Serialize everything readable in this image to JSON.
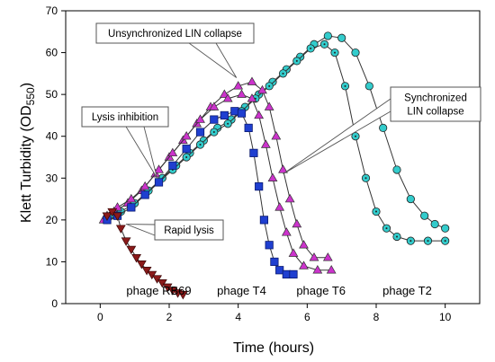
{
  "chart_data": {
    "type": "scatter",
    "xlabel": "Time (hours)",
    "ylabel": {
      "main": "Klett Turbidity (OD",
      "sub": "550",
      "close": ")"
    },
    "xlim": [
      -1,
      11
    ],
    "ylim": [
      0,
      70
    ],
    "xticks": [
      0,
      2,
      4,
      6,
      8,
      10
    ],
    "yticks": [
      0,
      10,
      20,
      30,
      40,
      50,
      60,
      70
    ],
    "grid": false,
    "colors": {
      "T2": "#33cccc",
      "T4": "#1f3fd0",
      "T6": "#cc33cc",
      "RB69": "#8b1a1a"
    },
    "series": [
      {
        "key": "T2a",
        "color_key": "T2",
        "marker": "circle",
        "points": [
          [
            0.3,
            21
          ],
          [
            0.6,
            22
          ],
          [
            1.0,
            24
          ],
          [
            1.4,
            27
          ],
          [
            1.8,
            30
          ],
          [
            2.2,
            33
          ],
          [
            2.6,
            36
          ],
          [
            3.0,
            39
          ],
          [
            3.4,
            42
          ],
          [
            3.8,
            44
          ],
          [
            4.2,
            47
          ],
          [
            4.6,
            50
          ],
          [
            5.0,
            53
          ],
          [
            5.4,
            56
          ],
          [
            5.8,
            59
          ],
          [
            6.2,
            62
          ],
          [
            6.6,
            64
          ],
          [
            7.0,
            63.5
          ],
          [
            7.4,
            60
          ],
          [
            7.8,
            52
          ],
          [
            8.2,
            42
          ],
          [
            8.6,
            32
          ],
          [
            9.0,
            25
          ],
          [
            9.4,
            21
          ],
          [
            9.7,
            19
          ],
          [
            10.0,
            18
          ]
        ]
      },
      {
        "key": "T2b",
        "color_key": "T2",
        "marker": "circle-dot",
        "points": [
          [
            0.2,
            20
          ],
          [
            0.5,
            21
          ],
          [
            0.9,
            23
          ],
          [
            1.3,
            26
          ],
          [
            1.7,
            29
          ],
          [
            2.1,
            32
          ],
          [
            2.5,
            35
          ],
          [
            2.9,
            38
          ],
          [
            3.3,
            41
          ],
          [
            3.7,
            43
          ],
          [
            4.1,
            46
          ],
          [
            4.5,
            49
          ],
          [
            4.9,
            52
          ],
          [
            5.3,
            55
          ],
          [
            5.7,
            58
          ],
          [
            6.1,
            61
          ],
          [
            6.5,
            62
          ],
          [
            6.8,
            60
          ],
          [
            7.1,
            52
          ],
          [
            7.4,
            40
          ],
          [
            7.7,
            30
          ],
          [
            8.0,
            22
          ],
          [
            8.3,
            18
          ],
          [
            8.6,
            16
          ],
          [
            9.0,
            15
          ],
          [
            9.5,
            15
          ],
          [
            10.0,
            15
          ]
        ]
      },
      {
        "key": "T6a",
        "color_key": "T6",
        "marker": "triangle-up",
        "points": [
          [
            0.1,
            20
          ],
          [
            0.4,
            22
          ],
          [
            0.8,
            24
          ],
          [
            1.2,
            27
          ],
          [
            1.6,
            31
          ],
          [
            2.0,
            35
          ],
          [
            2.4,
            39
          ],
          [
            2.8,
            43
          ],
          [
            3.2,
            47
          ],
          [
            3.6,
            50
          ],
          [
            4.0,
            52
          ],
          [
            4.4,
            53
          ],
          [
            4.7,
            51
          ],
          [
            4.9,
            47
          ],
          [
            5.1,
            40
          ],
          [
            5.3,
            32
          ],
          [
            5.5,
            25
          ],
          [
            5.7,
            19
          ],
          [
            5.9,
            14
          ],
          [
            6.2,
            11
          ],
          [
            6.6,
            11
          ]
        ]
      },
      {
        "key": "T6b",
        "color_key": "T6",
        "marker": "triangle-up",
        "points": [
          [
            0.2,
            21
          ],
          [
            0.5,
            23
          ],
          [
            0.9,
            25
          ],
          [
            1.3,
            28
          ],
          [
            1.7,
            32
          ],
          [
            2.1,
            36
          ],
          [
            2.5,
            40
          ],
          [
            2.9,
            44
          ],
          [
            3.3,
            47
          ],
          [
            3.7,
            49
          ],
          [
            4.1,
            50
          ],
          [
            4.4,
            49
          ],
          [
            4.6,
            45
          ],
          [
            4.8,
            38
          ],
          [
            5.0,
            30
          ],
          [
            5.2,
            23
          ],
          [
            5.4,
            17
          ],
          [
            5.6,
            12
          ],
          [
            5.9,
            9
          ],
          [
            6.3,
            8
          ],
          [
            6.7,
            8
          ]
        ]
      },
      {
        "key": "T4",
        "color_key": "T4",
        "marker": "square",
        "points": [
          [
            0.2,
            20
          ],
          [
            0.5,
            21
          ],
          [
            0.9,
            23
          ],
          [
            1.3,
            26
          ],
          [
            1.7,
            29
          ],
          [
            2.1,
            33
          ],
          [
            2.5,
            37
          ],
          [
            2.9,
            41
          ],
          [
            3.3,
            44
          ],
          [
            3.6,
            45
          ],
          [
            3.9,
            46
          ],
          [
            4.1,
            45.5
          ],
          [
            4.3,
            42
          ],
          [
            4.45,
            36
          ],
          [
            4.6,
            28
          ],
          [
            4.75,
            20
          ],
          [
            4.9,
            14
          ],
          [
            5.05,
            10
          ],
          [
            5.2,
            8
          ],
          [
            5.4,
            7
          ],
          [
            5.6,
            7
          ]
        ]
      },
      {
        "key": "RB69",
        "color_key": "RB69",
        "marker": "triangle-down",
        "points": [
          [
            0.2,
            21
          ],
          [
            0.35,
            22
          ],
          [
            0.5,
            21
          ],
          [
            0.6,
            18
          ],
          [
            0.75,
            15
          ],
          [
            0.9,
            13
          ],
          [
            1.05,
            11
          ],
          [
            1.2,
            9.5
          ],
          [
            1.35,
            8
          ],
          [
            1.5,
            7
          ],
          [
            1.65,
            6
          ],
          [
            1.8,
            5
          ],
          [
            1.95,
            4
          ],
          [
            2.1,
            3.2
          ],
          [
            2.25,
            2.6
          ],
          [
            2.4,
            2.2
          ]
        ]
      }
    ],
    "annotations": [
      {
        "key": "unsync",
        "text": [
          "Unsynchronized LIN collapse"
        ],
        "arrow_to": [
          3.95,
          54
        ]
      },
      {
        "key": "lysisinh",
        "text": [
          "Lysis inhibition"
        ],
        "arrow_to": [
          1.65,
          30
        ]
      },
      {
        "key": "sync",
        "text": [
          "Synchronized",
          "LIN collapse"
        ],
        "arrow_to": [
          5.3,
          31
        ]
      },
      {
        "key": "rapid",
        "text": [
          "Rapid lysis"
        ],
        "arrow_to": [
          0.75,
          19
        ]
      }
    ],
    "phase_labels": [
      {
        "key": "rb69",
        "text": "phage RB69",
        "x": 1.7,
        "y": 3
      },
      {
        "key": "t4",
        "text": "phage T4",
        "x": 4.1,
        "y": 3
      },
      {
        "key": "t6",
        "text": "phage T6",
        "x": 6.4,
        "y": 3
      },
      {
        "key": "t2",
        "text": "phage T2",
        "x": 8.9,
        "y": 3
      }
    ]
  }
}
